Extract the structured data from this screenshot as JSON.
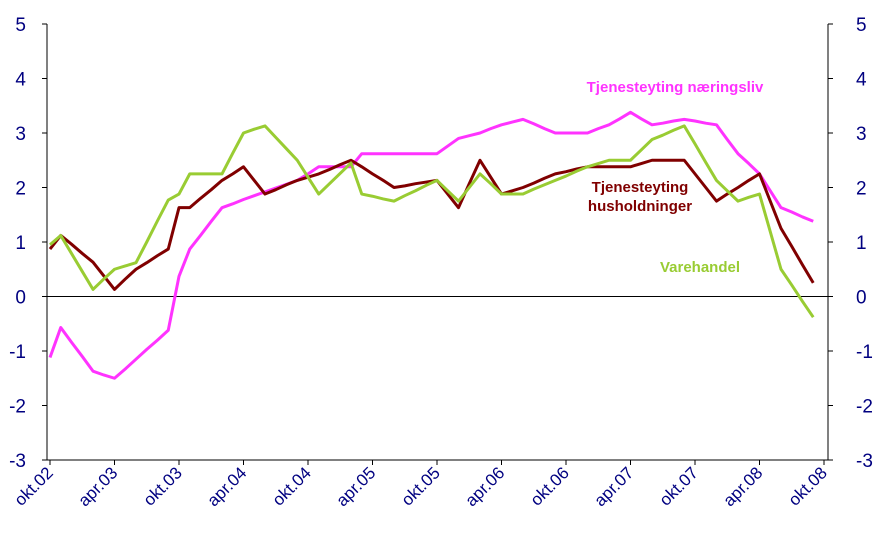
{
  "chart_data": {
    "type": "line",
    "categories": [
      "okt.02",
      null,
      null,
      null,
      null,
      null,
      "apr.03",
      null,
      null,
      null,
      null,
      null,
      "okt.03",
      null,
      null,
      null,
      null,
      null,
      "apr.04",
      null,
      null,
      null,
      null,
      null,
      "okt.04",
      null,
      null,
      null,
      null,
      null,
      "apr.05",
      null,
      null,
      null,
      null,
      null,
      "okt.05",
      null,
      null,
      null,
      null,
      null,
      "apr.06",
      null,
      null,
      null,
      null,
      null,
      "okt.06",
      null,
      null,
      null,
      null,
      null,
      "apr.07",
      null,
      null,
      null,
      null,
      null,
      "okt.07",
      null,
      null,
      null,
      null,
      null,
      "apr.08",
      null,
      null,
      null,
      null,
      null,
      "okt.08"
    ],
    "series": [
      {
        "name": "Tjenesteyting næringsliv",
        "color": "#ff33ff",
        "values": [
          -1.12,
          -0.57,
          -0.84,
          -1.1,
          -1.37,
          -1.44,
          -1.5,
          -1.33,
          -1.15,
          -0.97,
          -0.8,
          -0.62,
          0.37,
          0.87,
          1.12,
          1.38,
          1.63,
          1.7,
          1.78,
          1.85,
          1.92,
          1.99,
          2.06,
          2.13,
          2.25,
          2.38,
          2.38,
          2.38,
          2.38,
          2.62,
          2.62,
          2.62,
          2.62,
          2.62,
          2.62,
          2.62,
          2.62,
          2.76,
          2.9,
          2.95,
          3.0,
          3.08,
          3.15,
          3.2,
          3.25,
          3.17,
          3.08,
          3.0,
          3.0,
          3.0,
          3.0,
          3.08,
          3.15,
          3.26,
          3.38,
          3.26,
          3.15,
          3.18,
          3.22,
          3.25,
          3.22,
          3.18,
          3.15,
          2.88,
          2.62,
          2.44,
          2.25,
          1.94,
          1.63,
          1.55,
          1.46,
          1.38,
          null
        ]
      },
      {
        "name": "Tjenesteyting husholdninger",
        "color": "#800000",
        "values": [
          0.87,
          1.12,
          0.96,
          0.79,
          0.63,
          0.38,
          0.13,
          0.32,
          0.5,
          0.62,
          0.75,
          0.87,
          1.63,
          1.63,
          1.8,
          1.96,
          2.13,
          2.25,
          2.38,
          2.13,
          1.88,
          1.96,
          2.05,
          2.13,
          2.19,
          2.25,
          2.33,
          2.42,
          2.5,
          2.38,
          2.25,
          2.13,
          2.0,
          2.03,
          2.07,
          2.1,
          2.13,
          1.88,
          1.63,
          2.07,
          2.5,
          2.19,
          1.88,
          1.94,
          2.0,
          2.08,
          2.17,
          2.25,
          2.29,
          2.34,
          2.38,
          2.38,
          2.38,
          2.38,
          2.38,
          2.44,
          2.5,
          2.5,
          2.5,
          2.5,
          2.25,
          2.0,
          1.75,
          1.88,
          2.0,
          2.13,
          2.25,
          1.75,
          1.25,
          0.92,
          0.58,
          0.25,
          null
        ]
      },
      {
        "name": "Varehandel",
        "color": "#99cc33",
        "values": [
          0.95,
          1.12,
          0.79,
          0.46,
          0.13,
          0.32,
          0.5,
          0.56,
          0.62,
          1.0,
          1.39,
          1.77,
          1.88,
          2.25,
          2.25,
          2.25,
          2.25,
          2.63,
          3.0,
          3.07,
          3.13,
          2.92,
          2.71,
          2.5,
          2.19,
          1.88,
          2.07,
          2.26,
          2.45,
          1.88,
          1.84,
          1.79,
          1.75,
          1.85,
          1.94,
          2.04,
          2.13,
          1.94,
          1.75,
          2.0,
          2.25,
          2.07,
          1.88,
          1.88,
          1.88,
          1.97,
          2.05,
          2.13,
          2.21,
          2.3,
          2.38,
          2.44,
          2.5,
          2.5,
          2.5,
          2.69,
          2.88,
          2.96,
          3.05,
          3.13,
          2.8,
          2.46,
          2.13,
          1.94,
          1.75,
          1.82,
          1.88,
          1.19,
          0.5,
          0.21,
          -0.09,
          -0.38,
          null
        ]
      }
    ],
    "ylim": [
      -3,
      5
    ],
    "yticks": [
      -3,
      -2,
      -1,
      0,
      1,
      2,
      3,
      4,
      5
    ],
    "y2lim": [
      -3,
      5
    ],
    "y2ticks": [
      -3,
      -2,
      -1,
      0,
      1,
      2,
      3,
      4,
      5
    ],
    "grid": false
  }
}
